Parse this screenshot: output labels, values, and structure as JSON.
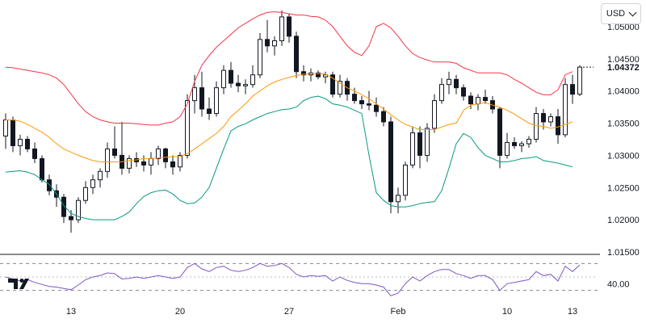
{
  "currency_selector": {
    "label": "USD"
  },
  "brand": {
    "logo_icon": "tradingview-logo-icon"
  },
  "colors": {
    "candle": "#131722",
    "bb_upper": "#f23645",
    "bb_basis": "#ff9800",
    "bb_lower": "#089981",
    "rsi": "#7e57c2",
    "grid_dash": "#787b86",
    "axis": "#131722"
  },
  "chart_data": [
    {
      "type": "candlestick",
      "title": "",
      "ylim": [
        1.015,
        1.0535
      ],
      "y_ticks": [
        "1.05000",
        "1.04500",
        "1.04000",
        "1.03500",
        "1.03000",
        "1.02500",
        "1.02000",
        "1.01500"
      ],
      "y_tick_values": [
        1.05,
        1.045,
        1.04,
        1.035,
        1.03,
        1.025,
        1.02,
        1.015
      ],
      "x_ticks": [
        "13",
        "20",
        "27",
        "Feb",
        "10",
        "13"
      ],
      "x_tick_index": [
        9,
        24,
        39,
        54,
        69,
        78
      ],
      "last_price": "1.04372",
      "last_price_value": 1.0437,
      "candles": [
        [
          1.033,
          1.0365,
          1.031,
          1.0355
        ],
        [
          1.0355,
          1.036,
          1.0305,
          1.0315
        ],
        [
          1.0315,
          1.0332,
          1.03,
          1.0325
        ],
        [
          1.0325,
          1.033,
          1.0305,
          1.031
        ],
        [
          1.031,
          1.032,
          1.0288,
          1.0295
        ],
        [
          1.0295,
          1.03,
          1.0258,
          1.0262
        ],
        [
          1.0262,
          1.027,
          1.0238,
          1.0245
        ],
        [
          1.0245,
          1.0255,
          1.022,
          1.0235
        ],
        [
          1.0235,
          1.024,
          1.0195,
          1.0205
        ],
        [
          1.0205,
          1.0215,
          1.018,
          1.02
        ],
        [
          1.02,
          1.0235,
          1.0195,
          1.023
        ],
        [
          1.023,
          1.026,
          1.0225,
          1.025
        ],
        [
          1.025,
          1.027,
          1.024,
          1.0262
        ],
        [
          1.0262,
          1.028,
          1.025,
          1.0275
        ],
        [
          1.0275,
          1.032,
          1.0265,
          1.031
        ],
        [
          1.031,
          1.0345,
          1.0295,
          1.03
        ],
        [
          1.03,
          1.0352,
          1.027,
          1.028
        ],
        [
          1.028,
          1.03,
          1.0272,
          1.0295
        ],
        [
          1.0295,
          1.0305,
          1.0282,
          1.029
        ],
        [
          1.029,
          1.03,
          1.0275,
          1.0285
        ],
        [
          1.0285,
          1.0305,
          1.027,
          1.0295
        ],
        [
          1.0295,
          1.0315,
          1.0285,
          1.031
        ],
        [
          1.031,
          1.0312,
          1.028,
          1.029
        ],
        [
          1.029,
          1.03,
          1.027,
          1.0282
        ],
        [
          1.0282,
          1.0305,
          1.0275,
          1.03
        ],
        [
          1.03,
          1.0395,
          1.0295,
          1.0385
        ],
        [
          1.0385,
          1.0425,
          1.0365,
          1.0405
        ],
        [
          1.0405,
          1.043,
          1.036,
          1.0372
        ],
        [
          1.0372,
          1.039,
          1.0355,
          1.0365
        ],
        [
          1.0365,
          1.0415,
          1.036,
          1.0405
        ],
        [
          1.0405,
          1.044,
          1.0395,
          1.0432
        ],
        [
          1.0432,
          1.0445,
          1.0405,
          1.0412
        ],
        [
          1.0412,
          1.0425,
          1.0398,
          1.0408
        ],
        [
          1.0408,
          1.0418,
          1.0395,
          1.041
        ],
        [
          1.041,
          1.044,
          1.0405,
          1.0425
        ],
        [
          1.0425,
          1.049,
          1.042,
          1.048
        ],
        [
          1.048,
          1.051,
          1.046,
          1.047
        ],
        [
          1.047,
          1.0485,
          1.0455,
          1.0478
        ],
        [
          1.0478,
          1.0525,
          1.047,
          1.0515
        ],
        [
          1.0515,
          1.052,
          1.0475,
          1.0485
        ],
        [
          1.0485,
          1.0492,
          1.042,
          1.043
        ],
        [
          1.043,
          1.044,
          1.0415,
          1.0425
        ],
        [
          1.0425,
          1.0435,
          1.0415,
          1.0428
        ],
        [
          1.0428,
          1.0432,
          1.0418,
          1.0422
        ],
        [
          1.0422,
          1.043,
          1.0412,
          1.0425
        ],
        [
          1.0425,
          1.043,
          1.039,
          1.0395
        ],
        [
          1.0395,
          1.0425,
          1.039,
          1.0415
        ],
        [
          1.0415,
          1.042,
          1.0385,
          1.0395
        ],
        [
          1.0395,
          1.0405,
          1.038,
          1.0385
        ],
        [
          1.0385,
          1.0392,
          1.0372,
          1.038
        ],
        [
          1.038,
          1.04,
          1.037,
          1.0378
        ],
        [
          1.0378,
          1.039,
          1.036,
          1.0368
        ],
        [
          1.0368,
          1.0375,
          1.0345,
          1.0352
        ],
        [
          1.0352,
          1.036,
          1.021,
          1.0228
        ],
        [
          1.0228,
          1.025,
          1.021,
          1.0238
        ],
        [
          1.0238,
          1.029,
          1.023,
          1.0285
        ],
        [
          1.0285,
          1.0345,
          1.028,
          1.0335
        ],
        [
          1.0335,
          1.0345,
          1.028,
          1.03
        ],
        [
          1.03,
          1.035,
          1.029,
          1.0342
        ],
        [
          1.0342,
          1.0395,
          1.0335,
          1.0385
        ],
        [
          1.0385,
          1.042,
          1.038,
          1.041
        ],
        [
          1.041,
          1.043,
          1.0395,
          1.0418
        ],
        [
          1.0418,
          1.0425,
          1.0395,
          1.0405
        ],
        [
          1.0405,
          1.041,
          1.0385,
          1.0392
        ],
        [
          1.0392,
          1.0398,
          1.0372,
          1.038
        ],
        [
          1.038,
          1.0395,
          1.037,
          1.039
        ],
        [
          1.039,
          1.0402,
          1.038,
          1.0385
        ],
        [
          1.0385,
          1.0392,
          1.0365,
          1.0372
        ],
        [
          1.0372,
          1.0375,
          1.028,
          1.03
        ],
        [
          1.03,
          1.0335,
          1.0295,
          1.032
        ],
        [
          1.032,
          1.0328,
          1.031,
          1.0315
        ],
        [
          1.0315,
          1.0322,
          1.0305,
          1.0318
        ],
        [
          1.0318,
          1.033,
          1.0312,
          1.0325
        ],
        [
          1.0325,
          1.0375,
          1.032,
          1.0365
        ],
        [
          1.0365,
          1.0372,
          1.034,
          1.0352
        ],
        [
          1.0352,
          1.0365,
          1.0345,
          1.036
        ],
        [
          1.036,
          1.0372,
          1.0318,
          1.0332
        ],
        [
          1.0332,
          1.042,
          1.0328,
          1.041
        ],
        [
          1.041,
          1.0425,
          1.038,
          1.0395
        ],
        [
          1.0395,
          1.044,
          1.0392,
          1.0437
        ]
      ],
      "bollinger_upper": [
        1.0437,
        1.0436,
        1.0434,
        1.0432,
        1.043,
        1.0428,
        1.0425,
        1.042,
        1.041,
        1.0395,
        1.038,
        1.0368,
        1.036,
        1.0355,
        1.0352,
        1.035,
        1.035,
        1.035,
        1.0349,
        1.0348,
        1.0347,
        1.0347,
        1.035,
        1.0352,
        1.036,
        1.038,
        1.0415,
        1.044,
        1.0455,
        1.0468,
        1.0478,
        1.0488,
        1.0498,
        1.0505,
        1.0512,
        1.0518,
        1.0522,
        1.0523,
        1.0522,
        1.052,
        1.0518,
        1.0518,
        1.0516,
        1.0515,
        1.051,
        1.05,
        1.0485,
        1.047,
        1.046,
        1.0455,
        1.047,
        1.05,
        1.0505,
        1.0498,
        1.0485,
        1.047,
        1.0458,
        1.0452,
        1.0448,
        1.0445,
        1.0445,
        1.0445,
        1.0443,
        1.0436,
        1.0432,
        1.0428,
        1.0428,
        1.0428,
        1.0428,
        1.0425,
        1.0418,
        1.0412,
        1.0405,
        1.0398,
        1.0394,
        1.0394,
        1.0402,
        1.0425,
        1.043
      ],
      "bollinger_basis": [
        1.0355,
        1.0355,
        1.0353,
        1.0348,
        1.0342,
        1.0336,
        1.0328,
        1.0318,
        1.031,
        1.0305,
        1.03,
        1.0296,
        1.0292,
        1.029,
        1.029,
        1.029,
        1.029,
        1.0292,
        1.0293,
        1.0295,
        1.0295,
        1.0296,
        1.0297,
        1.0298,
        1.0298,
        1.0303,
        1.031,
        1.0318,
        1.0326,
        1.0334,
        1.0345,
        1.036,
        1.037,
        1.038,
        1.0392,
        1.04,
        1.0408,
        1.0414,
        1.0418,
        1.0421,
        1.0424,
        1.0426,
        1.0427,
        1.0427,
        1.0426,
        1.042,
        1.0412,
        1.0405,
        1.04,
        1.0394,
        1.0388,
        1.038,
        1.0372,
        1.0363,
        1.0355,
        1.0348,
        1.0344,
        1.034,
        1.034,
        1.034,
        1.0344,
        1.0348,
        1.035,
        1.037,
        1.0378,
        1.038,
        1.0382,
        1.0378,
        1.0375,
        1.037,
        1.0364,
        1.0357,
        1.035,
        1.0346,
        1.0345,
        1.0342,
        1.0344,
        1.0348,
        1.0352
      ],
      "bollinger_lower": [
        1.0274,
        1.0275,
        1.0276,
        1.0274,
        1.027,
        1.0262,
        1.0255,
        1.024,
        1.0222,
        1.021,
        1.0205,
        1.0202,
        1.02,
        1.02,
        1.02,
        1.02,
        1.0205,
        1.0212,
        1.0225,
        1.0236,
        1.0242,
        1.0245,
        1.0246,
        1.024,
        1.023,
        1.0225,
        1.0226,
        1.0235,
        1.025,
        1.028,
        1.031,
        1.0338,
        1.0345,
        1.0349,
        1.0355,
        1.036,
        1.0365,
        1.0368,
        1.0371,
        1.0372,
        1.0375,
        1.0385,
        1.039,
        1.0392,
        1.0388,
        1.038,
        1.0378,
        1.0375,
        1.037,
        1.0365,
        1.03,
        1.0242,
        1.023,
        1.0222,
        1.022,
        1.022,
        1.0222,
        1.0225,
        1.0227,
        1.0228,
        1.0245,
        1.028,
        1.0318,
        1.0334,
        1.0328,
        1.0312,
        1.03,
        1.0295,
        1.029,
        1.029,
        1.0292,
        1.0295,
        1.0296,
        1.0298,
        1.0292,
        1.029,
        1.0288,
        1.0285,
        1.0282
      ]
    },
    {
      "type": "line",
      "title": "",
      "ylim": [
        20,
        80
      ],
      "y_ticks": [
        "40.00"
      ],
      "y_tick_values": [
        40
      ],
      "band_levels": [
        70,
        50,
        30
      ],
      "series": [
        {
          "values": [
            50,
            47,
            44,
            46,
            42,
            39,
            36,
            35,
            33,
            31,
            38,
            46,
            50,
            52,
            56,
            55,
            47,
            48,
            50,
            48,
            50,
            52,
            50,
            48,
            50,
            64,
            70,
            62,
            58,
            64,
            66,
            60,
            58,
            60,
            64,
            70,
            66,
            67,
            70,
            64,
            54,
            50,
            52,
            51,
            52,
            44,
            50,
            45,
            42,
            40,
            40,
            38,
            35,
            22,
            26,
            40,
            50,
            44,
            52,
            58,
            61,
            61,
            55,
            52,
            48,
            52,
            52,
            46,
            30,
            40,
            42,
            44,
            46,
            58,
            52,
            54,
            44,
            66,
            58,
            68
          ]
        }
      ]
    }
  ]
}
